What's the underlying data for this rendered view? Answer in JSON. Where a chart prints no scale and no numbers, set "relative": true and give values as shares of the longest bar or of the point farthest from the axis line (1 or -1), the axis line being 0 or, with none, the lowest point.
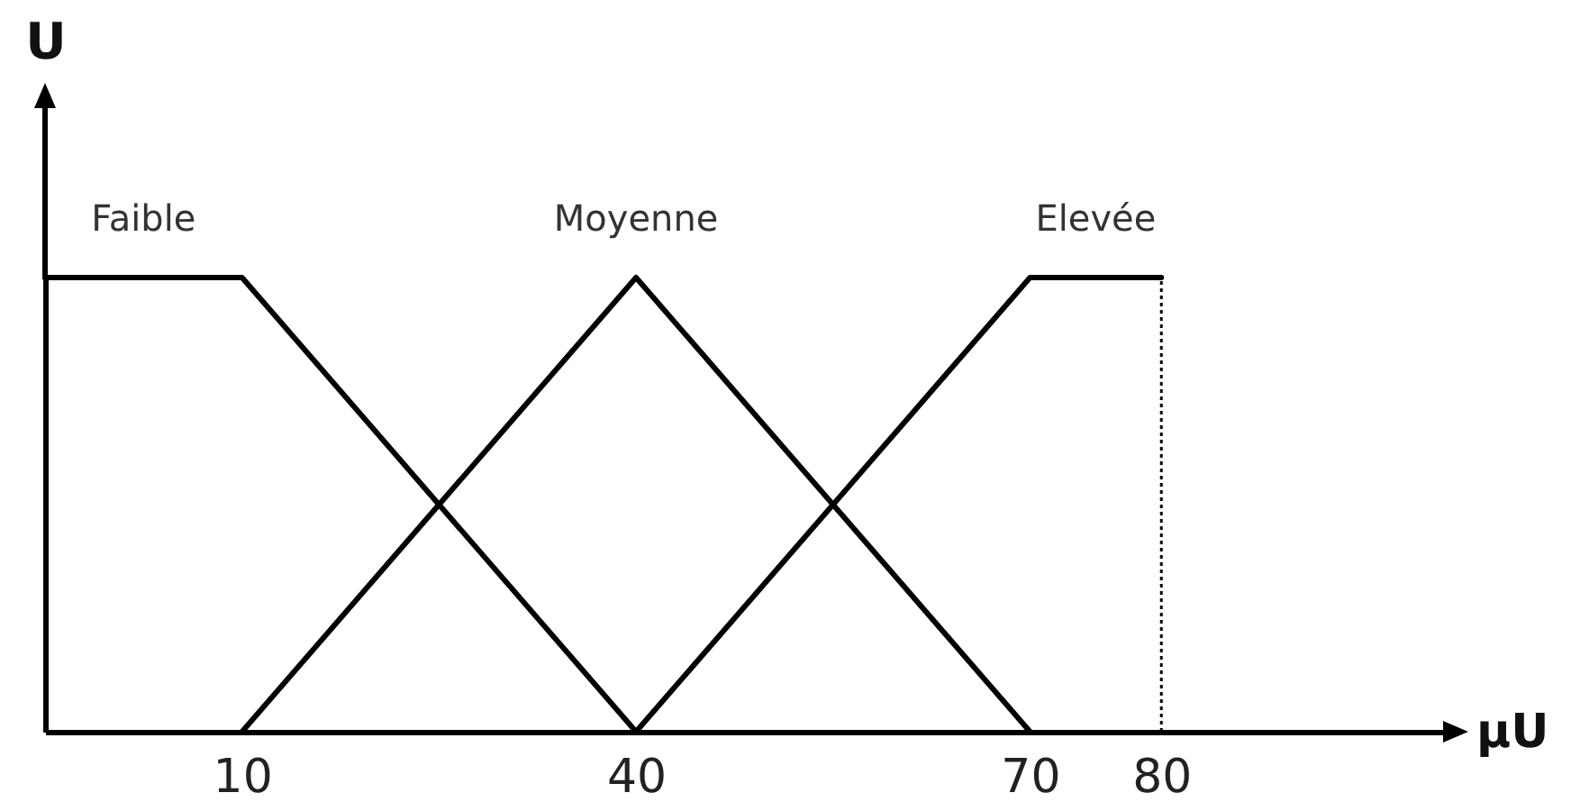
{
  "chart_data": {
    "type": "line",
    "xlabel": "μU",
    "ylabel": "U",
    "relative": true,
    "xlim": [
      -5,
      102
    ],
    "xticks": [
      10,
      40,
      70,
      80
    ],
    "line_style": "solid",
    "series": [
      {
        "name": "Faible",
        "color": "#000000",
        "x": [
          -5,
          10,
          40
        ],
        "values": [
          1,
          1,
          0
        ]
      },
      {
        "name": "Moyenne",
        "color": "#000000",
        "x": [
          10,
          40,
          70
        ],
        "values": [
          0,
          1,
          0
        ]
      },
      {
        "name": "Elevée",
        "color": "#000000",
        "x": [
          40,
          70,
          80
        ],
        "values": [
          0,
          1,
          1
        ]
      }
    ],
    "ref_lines": [
      {
        "axis": "x",
        "value": 80,
        "line_style": "dotted",
        "color": "#000000"
      }
    ]
  }
}
